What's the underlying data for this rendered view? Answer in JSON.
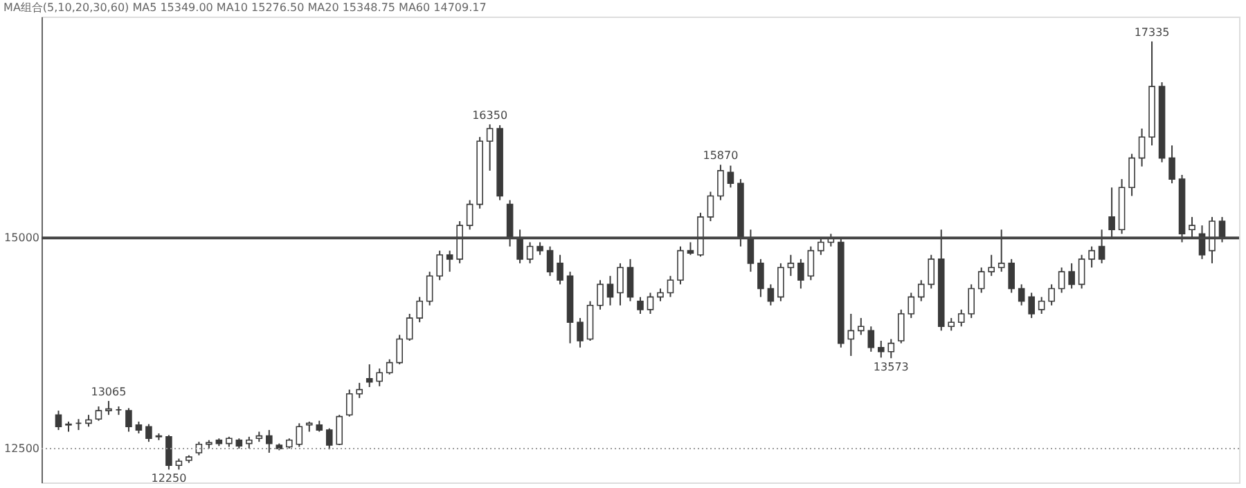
{
  "chart_data": {
    "type": "candlestick",
    "annotations": [
      "MA组合(5,10,20,30,60)  MA5 15349.00  MA10 15276.50  MA20 15348.75  MA60 14709.17",
      {
        "text": "13065",
        "y": 13065
      },
      {
        "text": "12250",
        "y": 12250
      },
      {
        "text": "16350",
        "y": 16350
      },
      {
        "text": "15870",
        "y": 15870
      },
      {
        "text": "13573",
        "y": 13573
      },
      {
        "text": "17335",
        "y": 17335
      }
    ],
    "categories": [
      null,
      null,
      null,
      null,
      null,
      null,
      null,
      null,
      null,
      null,
      null,
      null,
      null,
      null,
      null,
      null,
      null,
      null,
      null,
      null,
      null,
      null,
      null,
      null,
      null,
      null,
      null,
      null,
      null,
      null,
      null,
      null,
      null,
      null,
      null,
      null,
      null,
      null,
      null,
      null,
      null,
      null,
      null,
      null,
      null,
      null,
      null,
      null,
      null,
      null,
      null,
      null,
      null,
      null,
      null,
      null,
      null,
      null,
      null,
      null,
      null,
      null,
      null,
      null,
      null,
      null,
      null,
      null,
      null,
      null,
      null,
      null,
      null,
      null,
      null,
      null,
      null,
      null,
      null,
      null,
      null,
      null,
      null,
      null,
      null,
      null,
      null,
      null,
      null,
      null,
      null,
      null,
      null,
      null,
      null,
      null,
      null,
      null,
      null,
      null,
      null,
      null,
      null,
      null,
      null,
      null,
      null,
      null,
      null,
      null,
      null,
      null,
      null,
      null,
      null,
      null,
      null
    ],
    "ohlc": [
      [
        12900,
        12950,
        12720,
        12760
      ],
      [
        12780,
        12820,
        12700,
        12790
      ],
      [
        12800,
        12850,
        12720,
        12800
      ],
      [
        12800,
        12900,
        12760,
        12840
      ],
      [
        12850,
        13000,
        12830,
        12950
      ],
      [
        12950,
        13065,
        12900,
        12970
      ],
      [
        12960,
        13000,
        12900,
        12960
      ],
      [
        12950,
        12980,
        12700,
        12760
      ],
      [
        12780,
        12820,
        12680,
        12720
      ],
      [
        12760,
        12790,
        12580,
        12620
      ],
      [
        12650,
        12680,
        12600,
        12640
      ],
      [
        12640,
        12660,
        12250,
        12300
      ],
      [
        12300,
        12380,
        12250,
        12350
      ],
      [
        12360,
        12420,
        12330,
        12400
      ],
      [
        12450,
        12580,
        12420,
        12550
      ],
      [
        12550,
        12600,
        12500,
        12570
      ],
      [
        12600,
        12620,
        12530,
        12560
      ],
      [
        12560,
        12640,
        12520,
        12620
      ],
      [
        12600,
        12620,
        12500,
        12530
      ],
      [
        12560,
        12640,
        12500,
        12600
      ],
      [
        12620,
        12700,
        12580,
        12650
      ],
      [
        12650,
        12720,
        12450,
        12560
      ],
      [
        12540,
        12560,
        12480,
        12500
      ],
      [
        12520,
        12620,
        12500,
        12600
      ],
      [
        12550,
        12800,
        12520,
        12760
      ],
      [
        12780,
        12820,
        12700,
        12800
      ],
      [
        12780,
        12830,
        12700,
        12720
      ],
      [
        12720,
        12740,
        12490,
        12540
      ],
      [
        12550,
        12900,
        12540,
        12880
      ],
      [
        12900,
        13200,
        12880,
        13150
      ],
      [
        13150,
        13280,
        13100,
        13200
      ],
      [
        13330,
        13500,
        13230,
        13290
      ],
      [
        13300,
        13450,
        13240,
        13400
      ],
      [
        13400,
        13560,
        13380,
        13520
      ],
      [
        13520,
        13850,
        13500,
        13800
      ],
      [
        13800,
        14100,
        13780,
        14050
      ],
      [
        14050,
        14300,
        14000,
        14250
      ],
      [
        14250,
        14600,
        14200,
        14550
      ],
      [
        14550,
        14850,
        14500,
        14800
      ],
      [
        14800,
        14850,
        14600,
        14750
      ],
      [
        14750,
        15200,
        14700,
        15150
      ],
      [
        15150,
        15450,
        15100,
        15400
      ],
      [
        15400,
        16200,
        15350,
        16150
      ],
      [
        16150,
        16350,
        15800,
        16300
      ],
      [
        16300,
        16340,
        15450,
        15500
      ],
      [
        15400,
        15450,
        14900,
        15000
      ],
      [
        15000,
        15100,
        14700,
        14750
      ],
      [
        14750,
        14950,
        14700,
        14900
      ],
      [
        14900,
        14950,
        14800,
        14850
      ],
      [
        14850,
        14900,
        14550,
        14600
      ],
      [
        14700,
        14800,
        14450,
        14500
      ],
      [
        14550,
        14600,
        13750,
        14000
      ],
      [
        14000,
        14050,
        13700,
        13780
      ],
      [
        13800,
        14250,
        13780,
        14200
      ],
      [
        14200,
        14500,
        14150,
        14450
      ],
      [
        14450,
        14550,
        14200,
        14300
      ],
      [
        14350,
        14700,
        14200,
        14650
      ],
      [
        14650,
        14750,
        14250,
        14300
      ],
      [
        14250,
        14300,
        14100,
        14150
      ],
      [
        14150,
        14350,
        14100,
        14300
      ],
      [
        14300,
        14400,
        14250,
        14350
      ],
      [
        14350,
        14550,
        14300,
        14500
      ],
      [
        14500,
        14900,
        14450,
        14850
      ],
      [
        14850,
        14950,
        14800,
        14820
      ],
      [
        14800,
        15300,
        14780,
        15250
      ],
      [
        15250,
        15550,
        15200,
        15500
      ],
      [
        15500,
        15870,
        15450,
        15800
      ],
      [
        15780,
        15860,
        15600,
        15650
      ],
      [
        15650,
        15700,
        14900,
        15000
      ],
      [
        15000,
        15100,
        14600,
        14700
      ],
      [
        14700,
        14750,
        14300,
        14400
      ],
      [
        14400,
        14450,
        14200,
        14250
      ],
      [
        14300,
        14700,
        14250,
        14650
      ],
      [
        14650,
        14800,
        14550,
        14700
      ],
      [
        14700,
        14750,
        14400,
        14500
      ],
      [
        14550,
        14900,
        14500,
        14850
      ],
      [
        14850,
        15000,
        14800,
        14950
      ],
      [
        14950,
        15050,
        14900,
        15000
      ],
      [
        14950,
        15000,
        13700,
        13750
      ],
      [
        13800,
        14100,
        13600,
        13900
      ],
      [
        13900,
        14050,
        13850,
        13950
      ],
      [
        13900,
        13950,
        13650,
        13700
      ],
      [
        13700,
        13780,
        13580,
        13650
      ],
      [
        13650,
        13800,
        13573,
        13750
      ],
      [
        13780,
        14150,
        13750,
        14100
      ],
      [
        14100,
        14350,
        14050,
        14300
      ],
      [
        14300,
        14500,
        14250,
        14450
      ],
      [
        14450,
        14800,
        14400,
        14750
      ],
      [
        14750,
        15100,
        13900,
        13950
      ],
      [
        13950,
        14050,
        13900,
        14000
      ],
      [
        14000,
        14150,
        13950,
        14100
      ],
      [
        14100,
        14450,
        14050,
        14400
      ],
      [
        14400,
        14650,
        14350,
        14600
      ],
      [
        14600,
        14800,
        14550,
        14650
      ],
      [
        14650,
        15100,
        14600,
        14700
      ],
      [
        14700,
        14750,
        14350,
        14400
      ],
      [
        14400,
        14450,
        14200,
        14250
      ],
      [
        14300,
        14350,
        14050,
        14100
      ],
      [
        14150,
        14300,
        14100,
        14250
      ],
      [
        14250,
        14450,
        14200,
        14400
      ],
      [
        14400,
        14650,
        14350,
        14600
      ],
      [
        14600,
        14700,
        14400,
        14450
      ],
      [
        14450,
        14800,
        14400,
        14750
      ],
      [
        14750,
        14900,
        14650,
        14850
      ],
      [
        14900,
        15100,
        14700,
        14750
      ],
      [
        15250,
        15600,
        15000,
        15100
      ],
      [
        15100,
        15700,
        15050,
        15600
      ],
      [
        15600,
        16000,
        15500,
        15950
      ],
      [
        15950,
        16300,
        15850,
        16200
      ],
      [
        16200,
        17335,
        16100,
        16800
      ],
      [
        16800,
        16850,
        15900,
        15950
      ],
      [
        15950,
        16100,
        15650,
        15700
      ],
      [
        15700,
        15750,
        14950,
        15050
      ],
      [
        15100,
        15250,
        15000,
        15150
      ],
      [
        15050,
        15150,
        14750,
        14800
      ],
      [
        14850,
        15250,
        14700,
        15200
      ],
      [
        15200,
        15250,
        14950,
        15000
      ]
    ],
    "color": "#3a3a3a",
    "ylim": [
      12097,
      17630
    ],
    "yticks": [
      12500,
      15000
    ],
    "tick_labels": "y",
    "ref_lines": [
      {
        "axis": "y",
        "value": 15000,
        "color": "#444444"
      },
      {
        "axis": "y",
        "value": 12500,
        "color": "#999999",
        "line_style": "dotted"
      }
    ]
  }
}
